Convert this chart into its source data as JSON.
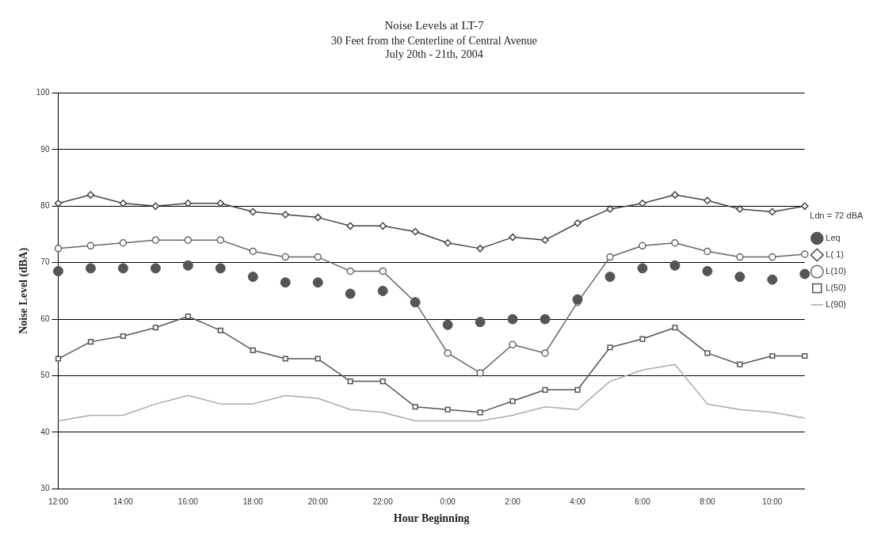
{
  "chart_data": {
    "type": "line",
    "title": "Noise Levels at LT-7",
    "subtitle": "30 Feet from the Centerline of Central Avenue\nJuly 20th - 21th, 2004",
    "xlabel": "Hour Beginning",
    "ylabel": "Noise Level (dBA)",
    "categories": [
      "12:00",
      null,
      "14:00",
      null,
      "16:00",
      null,
      "18:00",
      null,
      "20:00",
      null,
      "22:00",
      null,
      "0:00",
      null,
      "2:00",
      null,
      "4:00",
      null,
      "6:00",
      null,
      "8:00",
      null,
      "10:00",
      null
    ],
    "series": [
      {
        "name": "Leq",
        "type": "scatter",
        "marker": "circle",
        "color": "#555555",
        "values": [
          68.5,
          69,
          69,
          69,
          69.5,
          69,
          67.5,
          66.5,
          66.5,
          64.5,
          65,
          63,
          59,
          59.5,
          60,
          60,
          63.5,
          67.5,
          69,
          69.5,
          68.5,
          67.5,
          67,
          68
        ]
      },
      {
        "name": "L( 1)",
        "marker": "diamond",
        "color": "#444444",
        "values": [
          80.5,
          82,
          80.5,
          80,
          80.5,
          80.5,
          79,
          78.5,
          78,
          76.5,
          76.5,
          75.5,
          73.5,
          72.5,
          74.5,
          74,
          77,
          79.5,
          80.5,
          82,
          81,
          79.5,
          79,
          80
        ]
      },
      {
        "name": "L(10)",
        "marker": "circle",
        "color": "#666666",
        "values": [
          72.5,
          73,
          73.5,
          74,
          74,
          74,
          72,
          71,
          71,
          68.5,
          68.5,
          63,
          54,
          50.5,
          55.5,
          54,
          63,
          71,
          73,
          73.5,
          72,
          71,
          71,
          71.5
        ]
      },
      {
        "name": "L(50)",
        "marker": "square",
        "color": "#555555",
        "values": [
          53,
          56,
          57,
          58.5,
          60.5,
          58,
          54.5,
          53,
          53,
          49,
          49,
          44.5,
          44,
          43.5,
          45.5,
          47.5,
          47.5,
          55,
          56.5,
          58.5,
          54,
          52,
          53.5,
          53.5
        ]
      },
      {
        "name": "L(90)",
        "marker": "none",
        "color": "#aaaaaa",
        "values": [
          42,
          43,
          43,
          45,
          46.5,
          45,
          45,
          46.5,
          46,
          44,
          43.5,
          42,
          42,
          42,
          43,
          44.5,
          44,
          49,
          51,
          52,
          45,
          44,
          43.5,
          42.5
        ]
      }
    ],
    "ylim": [
      30,
      100
    ],
    "yticks": [
      30,
      40,
      50,
      60,
      70,
      80,
      90,
      100
    ],
    "grid": "y",
    "legend": "right",
    "annotations": [
      "Ldn = 72 dBA"
    ]
  }
}
